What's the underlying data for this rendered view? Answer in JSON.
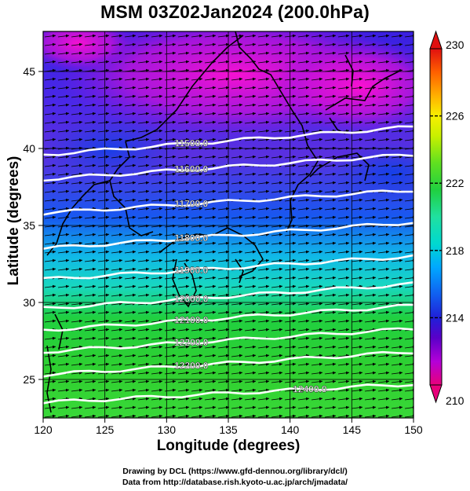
{
  "title": "MSM 03Z02Jan2024 (200.0hPa)",
  "xlabel": "Longitude (degrees)",
  "ylabel": "Latitude  (degrees)",
  "credits": {
    "line1": "Drawing by DCL (https://www.gfd-dennou.org/library/dcl/)",
    "line2": "Data from http://database.rish.kyoto-u.ac.jp/arch/jmadata/"
  },
  "map": {
    "lon_range": [
      120,
      150
    ],
    "lat_range": [
      22.5,
      47.6
    ],
    "x_ticks": [
      "120",
      "125",
      "130",
      "135",
      "140",
      "145",
      "150"
    ],
    "y_ticks": [
      "25",
      "30",
      "35",
      "40",
      "45"
    ],
    "contours": [
      {
        "label": "11500.0",
        "lat_w": 39.6,
        "lat_e": 41.4
      },
      {
        "label": "11600.0",
        "lat_w": 38.0,
        "lat_e": 39.6
      },
      {
        "label": "11700.0",
        "lat_w": 35.8,
        "lat_e": 37.3
      },
      {
        "label": "11800.0",
        "lat_w": 33.5,
        "lat_e": 35.2
      },
      {
        "label": "11900.0",
        "lat_w": 31.5,
        "lat_e": 33.0
      },
      {
        "label": "12000.0",
        "lat_w": 29.6,
        "lat_e": 31.2
      },
      {
        "label": "12100.0",
        "lat_w": 28.2,
        "lat_e": 29.8
      },
      {
        "label": "12200.0",
        "lat_w": 26.8,
        "lat_e": 28.3
      },
      {
        "label": "12300.0",
        "lat_w": 25.3,
        "lat_e": 26.8
      },
      {
        "label": "12400.0",
        "lat_w": 23.5,
        "lat_e": 24.7
      }
    ],
    "wind": "westerly"
  },
  "colorbar": {
    "min": 210,
    "max": 230,
    "labels": [
      "230",
      "226",
      "222",
      "218",
      "214",
      "210"
    ],
    "colors": [
      "#e8007a",
      "#b400d8",
      "#5a00c8",
      "#2020d8",
      "#1060f0",
      "#00a8ff",
      "#00d8d0",
      "#20e0a0",
      "#20d040",
      "#60e020",
      "#c8f000",
      "#f8f000",
      "#ffb000",
      "#ff6000",
      "#e01010"
    ]
  }
}
